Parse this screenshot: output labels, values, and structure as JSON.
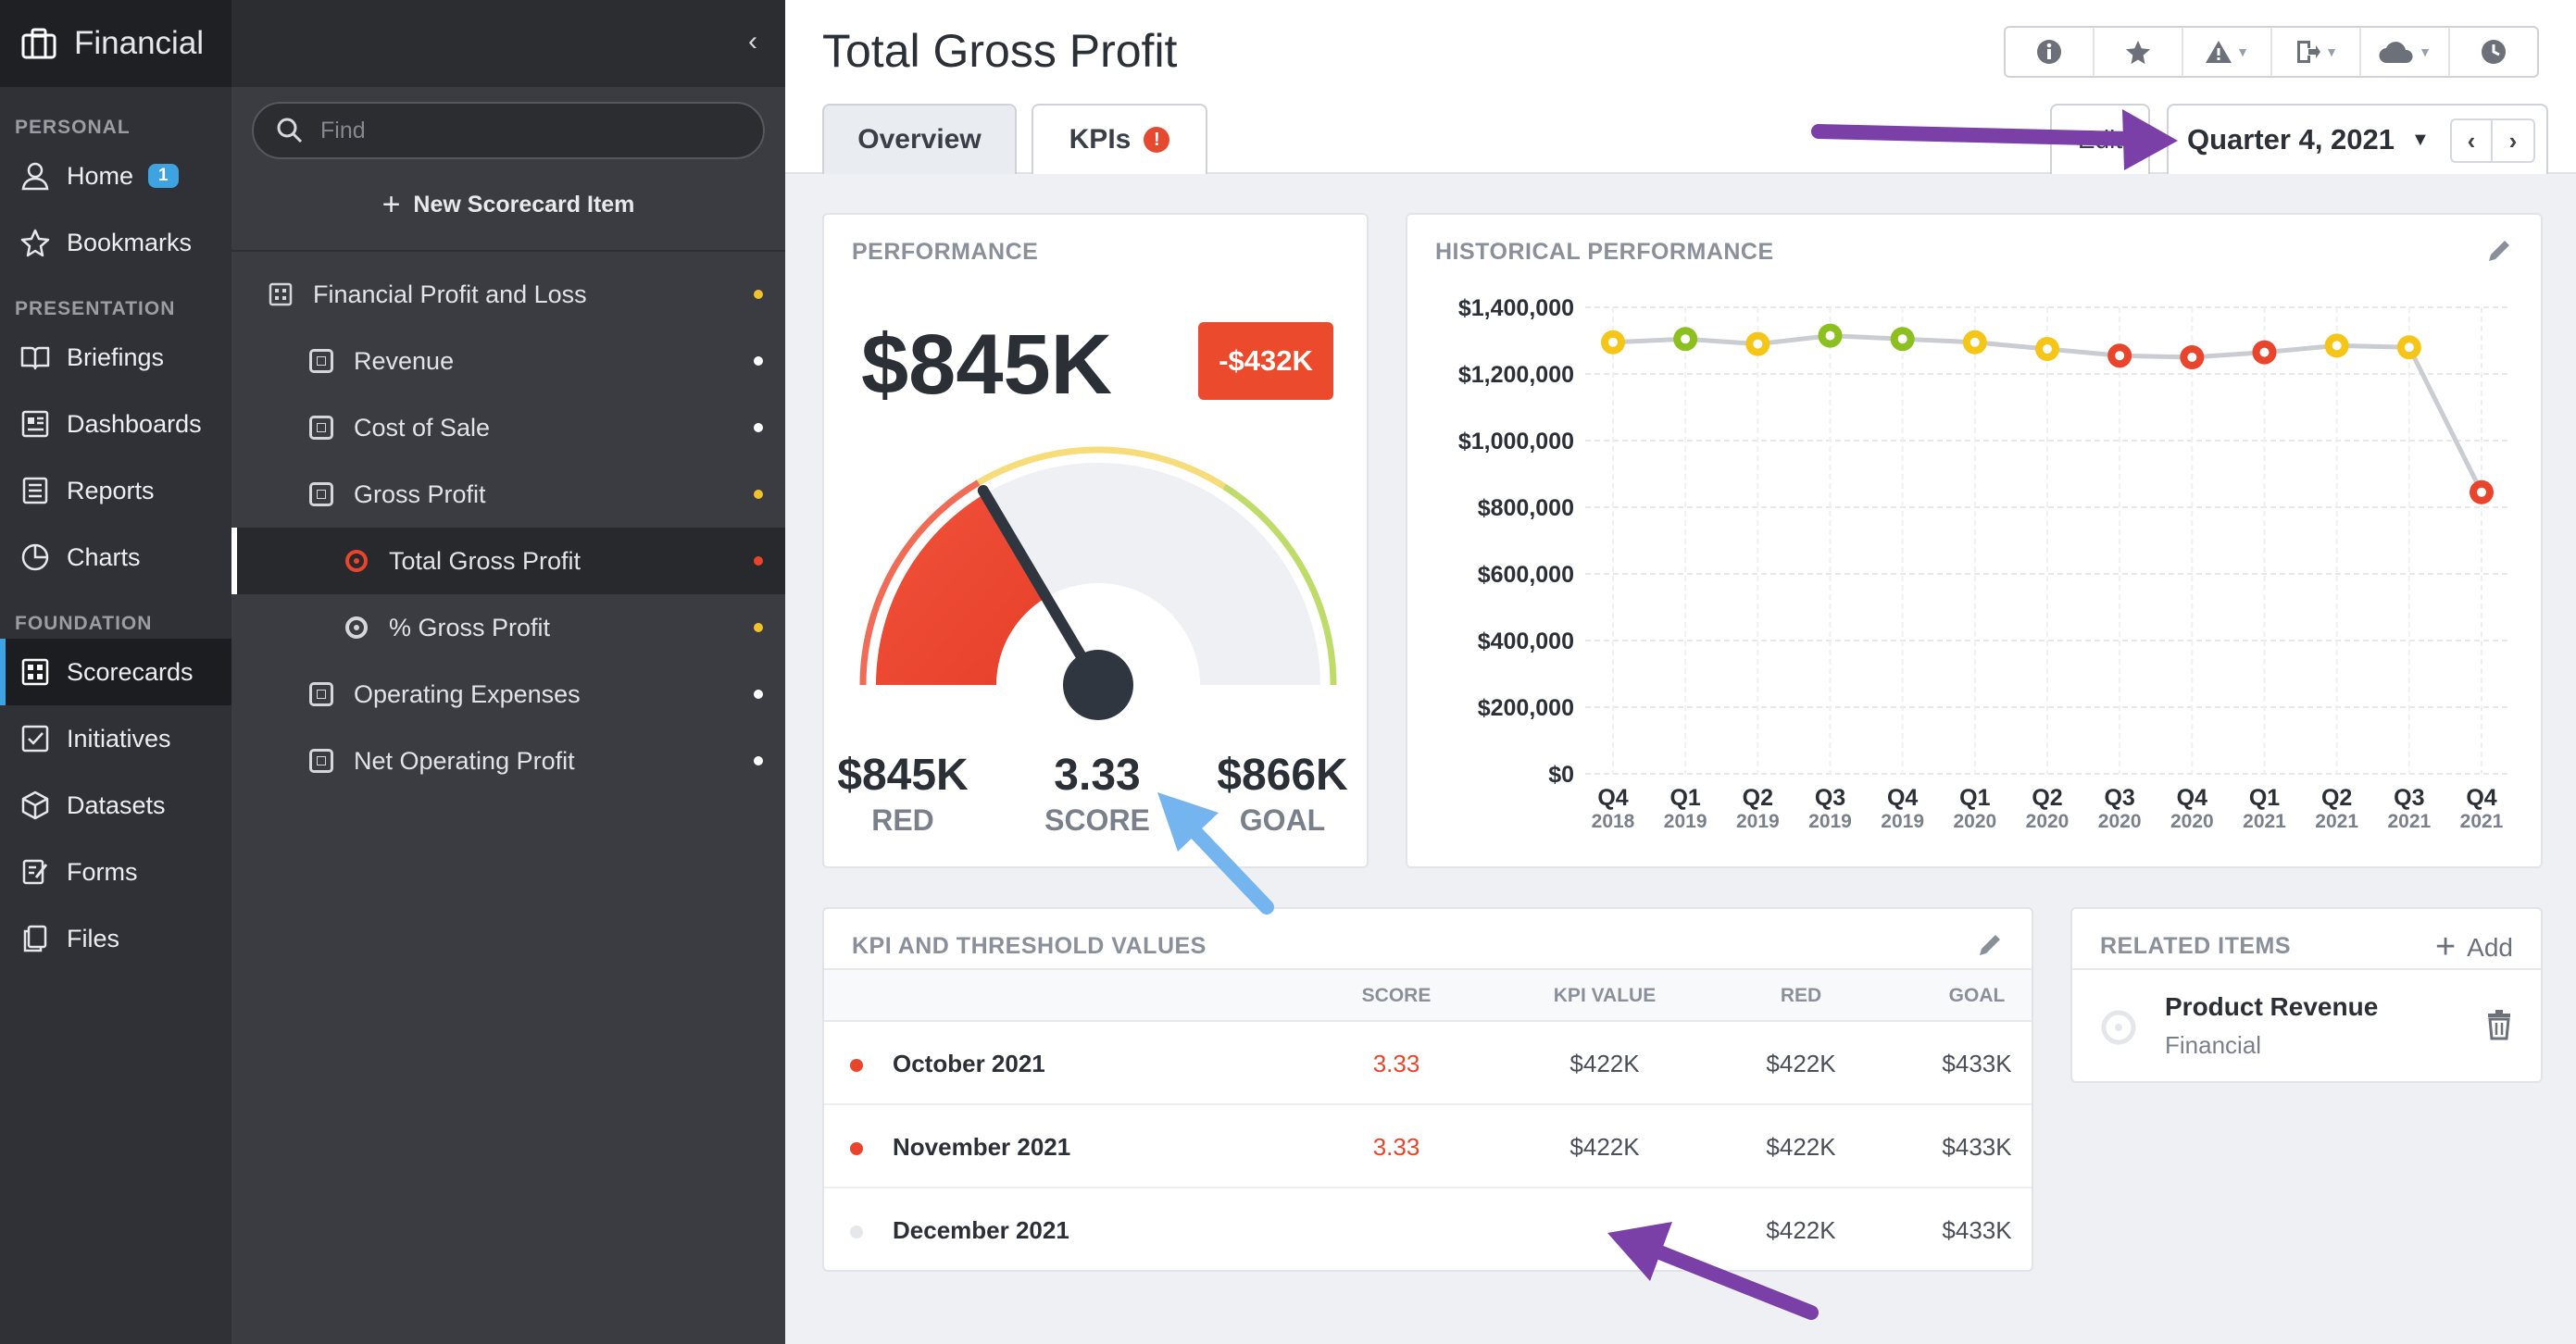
{
  "nav": {
    "brand": "Financial",
    "sections": {
      "personal": "PERSONAL",
      "presentation": "PRESENTATION",
      "foundation": "FOUNDATION"
    },
    "items": {
      "home": "Home",
      "home_badge": "1",
      "bookmarks": "Bookmarks",
      "briefings": "Briefings",
      "dashboards": "Dashboards",
      "reports": "Reports",
      "charts": "Charts",
      "scorecards": "Scorecards",
      "initiatives": "Initiatives",
      "datasets": "Datasets",
      "forms": "Forms",
      "files": "Files"
    }
  },
  "tree": {
    "collapse": "‹",
    "search_placeholder": "Find",
    "new_item": "New Scorecard Item",
    "items": [
      {
        "label": "Financial Profit and Loss",
        "status": "#f2c12e"
      },
      {
        "label": "Revenue",
        "status": "#ffffff"
      },
      {
        "label": "Cost of Sale",
        "status": "#ffffff"
      },
      {
        "label": "Gross Profit",
        "status": "#f2c12e"
      },
      {
        "label": "Total Gross Profit",
        "status": "#e8452c"
      },
      {
        "label": "% Gross Profit",
        "status": "#f2c12e"
      },
      {
        "label": "Operating Expenses",
        "status": "#ffffff"
      },
      {
        "label": "Net Operating Profit",
        "status": "#ffffff"
      }
    ]
  },
  "header": {
    "title": "Total Gross Profit",
    "tabs": {
      "overview": "Overview",
      "kpis": "KPIs",
      "kpis_alert": "!"
    },
    "edit": "Edit",
    "period": "Quarter 4, 2021",
    "toolbar_icons": [
      "info-icon",
      "star-icon",
      "warning-icon",
      "export-icon",
      "cloud-icon",
      "clock-icon"
    ]
  },
  "performance": {
    "title": "PERFORMANCE",
    "value": "$845K",
    "delta": "-$432K",
    "red_value": "$845K",
    "red_label": "RED",
    "score_value": "3.33",
    "score_label": "SCORE",
    "goal_value": "$866K",
    "goal_label": "GOAL",
    "gauge_fraction": 0.33
  },
  "history": {
    "title": "HISTORICAL PERFORMANCE"
  },
  "chart_data": {
    "type": "line",
    "title": "HISTORICAL PERFORMANCE",
    "categories": [
      "Q4 2018",
      "Q1 2019",
      "Q2 2019",
      "Q3 2019",
      "Q4 2019",
      "Q1 2020",
      "Q2 2020",
      "Q3 2020",
      "Q4 2020",
      "Q1 2021",
      "Q2 2021",
      "Q3 2021",
      "Q4 2021"
    ],
    "x_labels_top": [
      "Q4",
      "Q1",
      "Q2",
      "Q3",
      "Q4",
      "Q1",
      "Q2",
      "Q3",
      "Q4",
      "Q1",
      "Q2",
      "Q3",
      "Q4"
    ],
    "x_labels_bottom": [
      "2018",
      "2019",
      "2019",
      "2019",
      "2019",
      "2020",
      "2020",
      "2020",
      "2020",
      "2021",
      "2021",
      "2021",
      "2021"
    ],
    "values": [
      1295000,
      1305000,
      1290000,
      1315000,
      1305000,
      1295000,
      1275000,
      1255000,
      1250000,
      1265000,
      1285000,
      1280000,
      845000
    ],
    "point_colors": [
      "#f5c518",
      "#8cc01f",
      "#f5c518",
      "#8cc01f",
      "#8cc01f",
      "#f5c518",
      "#f5c518",
      "#e8452c",
      "#e8452c",
      "#e8452c",
      "#f5c518",
      "#f5c518",
      "#e8452c"
    ],
    "y_ticks": [
      "$0",
      "$200,000",
      "$400,000",
      "$600,000",
      "$800,000",
      "$1,000,000",
      "$1,200,000",
      "$1,400,000"
    ],
    "ylim": [
      0,
      1400000
    ],
    "grid": true,
    "legend": "none"
  },
  "kpi_table": {
    "title": "KPI AND THRESHOLD VALUES",
    "columns": {
      "score": "SCORE",
      "kpi": "KPI VALUE",
      "red": "RED",
      "goal": "GOAL"
    },
    "rows": [
      {
        "name": "October 2021",
        "score": "3.33",
        "kpi": "$422K",
        "red": "$422K",
        "goal": "$433K",
        "status": "#e8452c"
      },
      {
        "name": "November 2021",
        "score": "3.33",
        "kpi": "$422K",
        "red": "$422K",
        "goal": "$433K",
        "status": "#e8452c"
      },
      {
        "name": "December 2021",
        "score": "",
        "kpi": "",
        "red": "$422K",
        "goal": "$433K",
        "status": "#e5e7ea"
      }
    ]
  },
  "related": {
    "title": "RELATED ITEMS",
    "add": "Add",
    "item_name": "Product Revenue",
    "item_sub": "Financial"
  },
  "colors": {
    "accent": "#3ea3e0",
    "red": "#e8452c",
    "yellow": "#f5c518",
    "green": "#8cc01f",
    "annotation_purple": "#7b3fa8",
    "annotation_blue": "#74b4ef"
  }
}
